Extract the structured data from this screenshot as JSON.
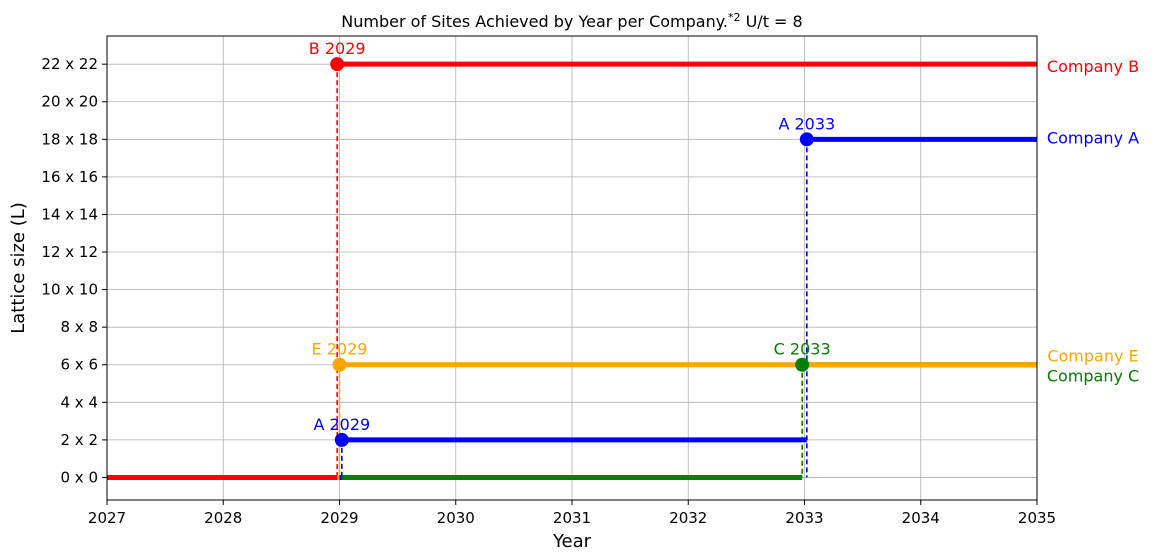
{
  "chart_data": {
    "type": "line",
    "title": "Number of Sites Achieved by Year per Company.",
    "title_superscript": "*2",
    "title_suffix": " U/t = 8",
    "xlabel": "Year",
    "ylabel": "Lattice size (L)",
    "xlim": [
      2027,
      2035
    ],
    "ylim": [
      -1.2,
      23.5
    ],
    "xticks": [
      2027,
      2028,
      2029,
      2030,
      2031,
      2032,
      2033,
      2034,
      2035
    ],
    "yticks": [
      {
        "value": 0,
        "label": "0 x 0"
      },
      {
        "value": 2,
        "label": "2 x 2"
      },
      {
        "value": 4,
        "label": "4 x 4"
      },
      {
        "value": 6,
        "label": "6 x 6"
      },
      {
        "value": 8,
        "label": "8 x 8"
      },
      {
        "value": 10,
        "label": "10 x 10"
      },
      {
        "value": 12,
        "label": "12 x 12"
      },
      {
        "value": 14,
        "label": "14 x 14"
      },
      {
        "value": 16,
        "label": "16 x 16"
      },
      {
        "value": 18,
        "label": "18 x 18"
      },
      {
        "value": 20,
        "label": "20 x 20"
      },
      {
        "value": 22,
        "label": "22 x 22"
      }
    ],
    "grid": true,
    "series": [
      {
        "name": "Company C",
        "color": "#008000",
        "steps": [
          [
            2027,
            0
          ],
          [
            2032.98,
            0
          ],
          [
            2032.98,
            6
          ],
          [
            2035,
            6
          ]
        ],
        "markers": [
          {
            "x": 2032.98,
            "y": 6,
            "label": "C 2033"
          }
        ]
      },
      {
        "name": "Company A",
        "color": "#0000ff",
        "steps": [
          [
            2027,
            0
          ],
          [
            2029.02,
            0
          ],
          [
            2029.02,
            2
          ],
          [
            2033.02,
            2
          ],
          [
            2033.02,
            18
          ],
          [
            2035,
            18
          ]
        ],
        "markers": [
          {
            "x": 2029.02,
            "y": 2,
            "label": "A 2029"
          },
          {
            "x": 2033.02,
            "y": 18,
            "label": "A 2033"
          }
        ]
      },
      {
        "name": "Company E",
        "color": "#ffa500",
        "steps": [
          [
            2027,
            0
          ],
          [
            2029.0,
            0
          ],
          [
            2029.0,
            6
          ],
          [
            2035,
            6
          ]
        ],
        "markers": [
          {
            "x": 2029.0,
            "y": 6,
            "label": "E 2029"
          }
        ]
      },
      {
        "name": "Company B",
        "color": "#ff0000",
        "steps": [
          [
            2027,
            0
          ],
          [
            2028.98,
            0
          ],
          [
            2028.98,
            22
          ],
          [
            2035,
            22
          ]
        ],
        "markers": [
          {
            "x": 2028.98,
            "y": 22,
            "label": "B 2029"
          }
        ]
      }
    ],
    "right_labels": [
      {
        "name": "Company B",
        "y": 22,
        "color": "#ff0000"
      },
      {
        "name": "Company A",
        "y": 18,
        "color": "#0000ff"
      },
      {
        "name": "Company E",
        "y": 6,
        "color": "#ffa500"
      },
      {
        "name": "Company C",
        "y": 6,
        "color": "#008000"
      }
    ]
  }
}
